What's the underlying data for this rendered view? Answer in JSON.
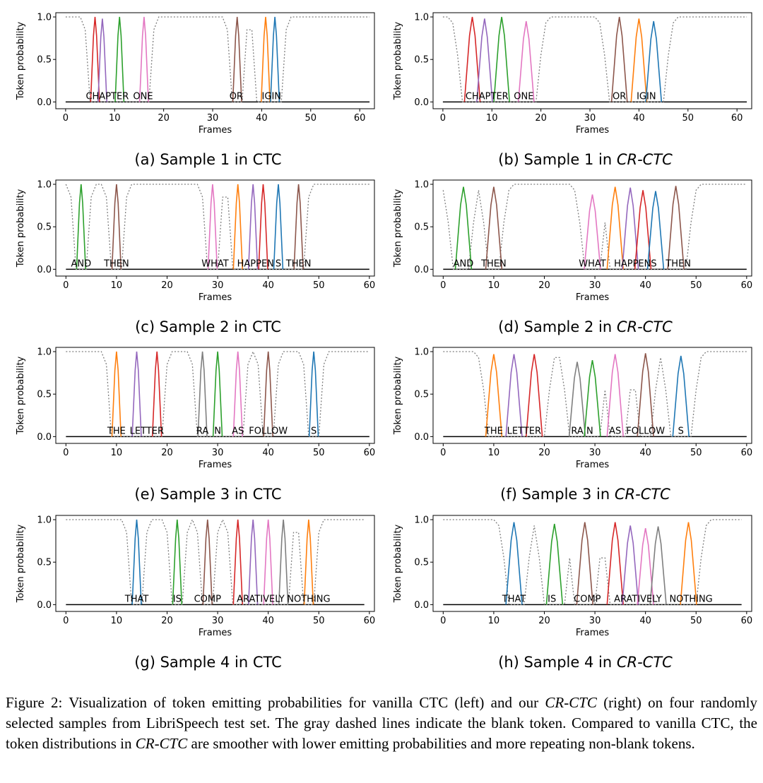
{
  "figure": {
    "caption_label": "Figure 2:",
    "caption_part1": "Visualization of token emitting probabilities for vanilla CTC (left) and our",
    "caption_model": "CR-CTC",
    "caption_part2": "(right) on four randomly selected samples from LibriSpeech test set. The gray dashed lines indicate the blank token. Compared to vanilla CTC, the token distributions in",
    "caption_part3": "are smoother with lower emitting probabilities and more repeating non-blank tokens."
  },
  "colors": {
    "blank": "#7f7f7f",
    "tokens": [
      "#d62728",
      "#9467bd",
      "#2ca02c",
      "#e377c2",
      "#8c564b",
      "#ff7f0e",
      "#1f77b4",
      "#7f7f7f"
    ]
  },
  "chart_data": [
    {
      "id": "a",
      "type": "line",
      "subcaption_prefix": "(a) Sample 1 in",
      "subcaption_model": "CTC",
      "model_italic": false,
      "xlabel": "Frames",
      "ylabel": "Token probability",
      "xlim": [
        -2,
        63
      ],
      "ylim": [
        -0.08,
        1.05
      ],
      "xticks": [
        0,
        10,
        20,
        30,
        40,
        50,
        60
      ],
      "yticks": [
        "0.0",
        "0.5",
        "1.0"
      ],
      "frames": 62,
      "blank": {
        "name": "blank",
        "dips": [
          [
            5,
            17
          ],
          [
            34,
            36
          ],
          [
            39,
            44
          ]
        ],
        "width": 1
      },
      "tokens": [
        {
          "text": "CHA",
          "x": 6,
          "peak": 1.0,
          "color": "#d62728"
        },
        {
          "text": "P",
          "x": 7.5,
          "peak": 0.98,
          "color": "#9467bd"
        },
        {
          "text": "TER",
          "x": 11,
          "peak": 1.0,
          "color": "#2ca02c"
        },
        {
          "text": "ONE",
          "x": 16,
          "peak": 1.0,
          "color": "#e377c2"
        },
        {
          "text": "OR",
          "x": 35,
          "peak": 1.0,
          "color": "#8c564b"
        },
        {
          "text": "IG",
          "x": 40.8,
          "peak": 1.0,
          "color": "#ff7f0e"
        },
        {
          "text": "IN",
          "x": 42.7,
          "peak": 1.0,
          "color": "#1f77b4"
        }
      ],
      "labels": [
        {
          "text": "CHAPTER",
          "x": 8.5
        },
        {
          "text": "ONE",
          "x": 15.8
        },
        {
          "text": "OR",
          "x": 34.8
        },
        {
          "text": "IGIN",
          "x": 42
        }
      ]
    },
    {
      "id": "b",
      "type": "line",
      "subcaption_prefix": "(b) Sample 1 in",
      "subcaption_model": "CR-CTC",
      "model_italic": true,
      "xlabel": "Frames",
      "ylabel": "Token probability",
      "xlim": [
        -2,
        63
      ],
      "ylim": [
        -0.08,
        1.05
      ],
      "xticks": [
        0,
        10,
        20,
        30,
        40,
        50,
        60
      ],
      "yticks": [
        "0.0",
        "0.5",
        "1.0"
      ],
      "frames": 62,
      "blank": {
        "name": "blank",
        "dips": [
          [
            4,
            19
          ],
          [
            34,
            45
          ]
        ],
        "width": 2
      },
      "tokens": [
        {
          "text": "CHA",
          "x": 6,
          "peak": 1.0,
          "color": "#d62728"
        },
        {
          "text": "P",
          "x": 8.5,
          "peak": 0.98,
          "color": "#9467bd"
        },
        {
          "text": "TER",
          "x": 12,
          "peak": 1.0,
          "color": "#2ca02c"
        },
        {
          "text": "ONE",
          "x": 17,
          "peak": 0.95,
          "color": "#e377c2"
        },
        {
          "text": "OR",
          "x": 36,
          "peak": 1.0,
          "color": "#8c564b"
        },
        {
          "text": "IG",
          "x": 40,
          "peak": 0.98,
          "color": "#ff7f0e"
        },
        {
          "text": "IN",
          "x": 43,
          "peak": 0.95,
          "color": "#1f77b4"
        }
      ],
      "labels": [
        {
          "text": "CHAPTER",
          "x": 9
        },
        {
          "text": "ONE",
          "x": 16.5
        },
        {
          "text": "OR",
          "x": 36
        },
        {
          "text": "IGIN",
          "x": 41.5
        }
      ]
    },
    {
      "id": "c",
      "type": "line",
      "subcaption_prefix": "(c) Sample 2 in",
      "subcaption_model": "CTC",
      "model_italic": false,
      "xlabel": "Frames",
      "ylabel": "Token probability",
      "xlim": [
        -2,
        61
      ],
      "ylim": [
        -0.08,
        1.05
      ],
      "xticks": [
        0,
        10,
        20,
        30,
        40,
        50,
        60
      ],
      "yticks": [
        "0.0",
        "0.5",
        "1.0"
      ],
      "frames": 60,
      "blank": {
        "name": "blank",
        "dips": [
          [
            2,
            4
          ],
          [
            9,
            11
          ],
          [
            28,
            30
          ],
          [
            33,
            47
          ]
        ],
        "width": 1
      },
      "tokens": [
        {
          "text": "AND",
          "x": 3,
          "peak": 1.0,
          "color": "#2ca02c"
        },
        {
          "text": "THEN",
          "x": 10,
          "peak": 1.0,
          "color": "#8c564b"
        },
        {
          "text": "WHAT",
          "x": 29,
          "peak": 1.0,
          "color": "#e377c2"
        },
        {
          "text": "HA",
          "x": 34,
          "peak": 1.0,
          "color": "#ff7f0e"
        },
        {
          "text": "PP",
          "x": 37,
          "peak": 1.0,
          "color": "#9467bd"
        },
        {
          "text": "EN",
          "x": 39,
          "peak": 1.0,
          "color": "#d62728"
        },
        {
          "text": "S",
          "x": 42,
          "peak": 1.0,
          "color": "#1f77b4"
        },
        {
          "text": "THEN",
          "x": 46,
          "peak": 1.0,
          "color": "#8c564b"
        }
      ],
      "labels": [
        {
          "text": "AND",
          "x": 3
        },
        {
          "text": "THEN",
          "x": 10
        },
        {
          "text": "WHAT",
          "x": 29.5
        },
        {
          "text": "HAPPEN",
          "x": 37.5
        },
        {
          "text": "S",
          "x": 42
        },
        {
          "text": "THEN",
          "x": 46
        }
      ]
    },
    {
      "id": "d",
      "type": "line",
      "subcaption_prefix": "(d) Sample 2 in",
      "subcaption_model": "CR-CTC",
      "model_italic": true,
      "xlabel": "Frames",
      "ylabel": "Token probability",
      "xlim": [
        -2,
        61
      ],
      "ylim": [
        -0.08,
        1.05
      ],
      "xticks": [
        0,
        10,
        20,
        30,
        40,
        50,
        60
      ],
      "yticks": [
        "0.0",
        "0.5",
        "1.0"
      ],
      "frames": 60,
      "blank": {
        "name": "blank",
        "dips": [
          [
            2,
            5
          ],
          [
            9,
            11
          ],
          [
            28,
            31
          ],
          [
            33,
            48
          ]
        ],
        "width": 2
      },
      "tokens": [
        {
          "text": "AND",
          "x": 4,
          "peak": 0.97,
          "color": "#2ca02c"
        },
        {
          "text": "THEN",
          "x": 10,
          "peak": 0.97,
          "color": "#8c564b"
        },
        {
          "text": "WHAT",
          "x": 29.5,
          "peak": 0.88,
          "color": "#e377c2"
        },
        {
          "text": "HA",
          "x": 34,
          "peak": 0.97,
          "color": "#ff7f0e"
        },
        {
          "text": "PP",
          "x": 37,
          "peak": 0.96,
          "color": "#9467bd"
        },
        {
          "text": "EN",
          "x": 39.5,
          "peak": 0.93,
          "color": "#d62728"
        },
        {
          "text": "S",
          "x": 42,
          "peak": 0.92,
          "color": "#1f77b4"
        },
        {
          "text": "THEN",
          "x": 46,
          "peak": 0.98,
          "color": "#8c564b"
        }
      ],
      "labels": [
        {
          "text": "AND",
          "x": 4
        },
        {
          "text": "THEN",
          "x": 10
        },
        {
          "text": "WHAT",
          "x": 29.5
        },
        {
          "text": "HAPPENS",
          "x": 38
        },
        {
          "text": "THEN",
          "x": 46.5
        }
      ]
    },
    {
      "id": "e",
      "type": "line",
      "subcaption_prefix": "(e) Sample 3 in",
      "subcaption_model": "CTC",
      "model_italic": false,
      "xlabel": "Frames",
      "ylabel": "Token probability",
      "xlim": [
        -2,
        61
      ],
      "ylim": [
        -0.08,
        1.05
      ],
      "xticks": [
        0,
        10,
        20,
        30,
        40,
        50,
        60
      ],
      "yticks": [
        "0.0",
        "0.5",
        "1.0"
      ],
      "frames": 60,
      "blank": {
        "name": "blank",
        "dips": [
          [
            9,
            19
          ],
          [
            26,
            35
          ],
          [
            39,
            41
          ],
          [
            48,
            50
          ]
        ],
        "width": 1
      },
      "tokens": [
        {
          "text": "THE",
          "x": 10,
          "peak": 1.0,
          "color": "#ff7f0e"
        },
        {
          "text": "LET",
          "x": 14,
          "peak": 1.0,
          "color": "#9467bd"
        },
        {
          "text": "TER",
          "x": 18,
          "peak": 1.0,
          "color": "#d62728"
        },
        {
          "text": "RA",
          "x": 27,
          "peak": 1.0,
          "color": "#7f7f7f"
        },
        {
          "text": "N",
          "x": 30,
          "peak": 1.0,
          "color": "#2ca02c"
        },
        {
          "text": "AS",
          "x": 34,
          "peak": 1.0,
          "color": "#e377c2"
        },
        {
          "text": "FOLLOW",
          "x": 40,
          "peak": 1.0,
          "color": "#8c564b"
        },
        {
          "text": "S",
          "x": 49,
          "peak": 1.0,
          "color": "#1f77b4"
        }
      ],
      "labels": [
        {
          "text": "THE",
          "x": 10
        },
        {
          "text": "LETTER",
          "x": 16
        },
        {
          "text": "RA",
          "x": 27
        },
        {
          "text": "N",
          "x": 30
        },
        {
          "text": "AS",
          "x": 34
        },
        {
          "text": "FOLLOW",
          "x": 40
        },
        {
          "text": "S",
          "x": 49
        }
      ]
    },
    {
      "id": "f",
      "type": "line",
      "subcaption_prefix": "(f) Sample 3 in",
      "subcaption_model": "CR-CTC",
      "model_italic": true,
      "xlabel": "Frames",
      "ylabel": "Token probability",
      "xlim": [
        -2,
        61
      ],
      "ylim": [
        -0.08,
        1.05
      ],
      "xticks": [
        0,
        10,
        20,
        30,
        40,
        50,
        60
      ],
      "yticks": [
        "0.0",
        "0.5",
        "1.0"
      ],
      "frames": 60,
      "blank": {
        "name": "blank",
        "dips": [
          [
            9,
            20
          ],
          [
            25,
            31
          ],
          [
            33,
            36
          ],
          [
            39,
            41
          ],
          [
            45,
            49
          ]
        ],
        "width": 2
      },
      "tokens": [
        {
          "text": "THE",
          "x": 10,
          "peak": 0.97,
          "color": "#ff7f0e"
        },
        {
          "text": "LET",
          "x": 14,
          "peak": 0.97,
          "color": "#9467bd"
        },
        {
          "text": "TER",
          "x": 18,
          "peak": 0.97,
          "color": "#d62728"
        },
        {
          "text": "RA",
          "x": 26.5,
          "peak": 0.88,
          "color": "#7f7f7f"
        },
        {
          "text": "N",
          "x": 29.5,
          "peak": 0.9,
          "color": "#2ca02c"
        },
        {
          "text": "AS",
          "x": 34,
          "peak": 0.97,
          "color": "#e377c2"
        },
        {
          "text": "FOLLOW",
          "x": 40,
          "peak": 0.98,
          "color": "#8c564b"
        },
        {
          "text": "S",
          "x": 47,
          "peak": 0.95,
          "color": "#1f77b4"
        }
      ],
      "labels": [
        {
          "text": "THE",
          "x": 10
        },
        {
          "text": "LETTER",
          "x": 16
        },
        {
          "text": "RA",
          "x": 26.5
        },
        {
          "text": "N",
          "x": 29
        },
        {
          "text": "AS",
          "x": 34
        },
        {
          "text": "FOLLOW",
          "x": 40
        },
        {
          "text": "S",
          "x": 47
        }
      ]
    },
    {
      "id": "g",
      "type": "line",
      "subcaption_prefix": "(g) Sample 4 in",
      "subcaption_model": "CTC",
      "model_italic": false,
      "xlabel": "Frames",
      "ylabel": "Token probability",
      "xlim": [
        -2,
        61
      ],
      "ylim": [
        -0.08,
        1.05
      ],
      "xticks": [
        0,
        10,
        20,
        30,
        40,
        50,
        60
      ],
      "yticks": [
        "0.0",
        "0.5",
        "1.0"
      ],
      "frames": 59,
      "blank": {
        "name": "blank",
        "dips": [
          [
            13,
            15
          ],
          [
            21,
            23
          ],
          [
            27,
            29
          ],
          [
            33,
            44
          ],
          [
            47,
            49
          ]
        ],
        "width": 1
      },
      "tokens": [
        {
          "text": "THAT",
          "x": 14,
          "peak": 1.0,
          "color": "#1f77b4"
        },
        {
          "text": "IS",
          "x": 22,
          "peak": 1.0,
          "color": "#2ca02c"
        },
        {
          "text": "COMP",
          "x": 28,
          "peak": 1.0,
          "color": "#8c564b"
        },
        {
          "text": "AR",
          "x": 34,
          "peak": 1.0,
          "color": "#d62728"
        },
        {
          "text": "AT",
          "x": 37,
          "peak": 1.0,
          "color": "#9467bd"
        },
        {
          "text": "IVE",
          "x": 40,
          "peak": 1.0,
          "color": "#e377c2"
        },
        {
          "text": "LY",
          "x": 43,
          "peak": 1.0,
          "color": "#7f7f7f"
        },
        {
          "text": "NOTHING",
          "x": 48,
          "peak": 1.0,
          "color": "#ff7f0e"
        }
      ],
      "labels": [
        {
          "text": "THAT",
          "x": 14
        },
        {
          "text": "IS",
          "x": 22
        },
        {
          "text": "COMP",
          "x": 28
        },
        {
          "text": "ARATIVELY",
          "x": 38.5
        },
        {
          "text": "NOTHING",
          "x": 48
        }
      ]
    },
    {
      "id": "h",
      "type": "line",
      "subcaption_prefix": "(h) Sample 4 in",
      "subcaption_model": "CR-CTC",
      "model_italic": true,
      "xlabel": "Frames",
      "ylabel": "Token probability",
      "xlim": [
        -2,
        61
      ],
      "ylim": [
        -0.08,
        1.05
      ],
      "xticks": [
        0,
        10,
        20,
        30,
        40,
        50,
        60
      ],
      "yticks": [
        "0.0",
        "0.5",
        "1.0"
      ],
      "frames": 59,
      "blank": {
        "name": "blank",
        "dips": [
          [
            13,
            16
          ],
          [
            20,
            24
          ],
          [
            26,
            30
          ],
          [
            33,
            46
          ],
          [
            47,
            50
          ]
        ],
        "width": 2
      },
      "tokens": [
        {
          "text": "THAT",
          "x": 14,
          "peak": 0.97,
          "color": "#1f77b4"
        },
        {
          "text": "IS",
          "x": 22,
          "peak": 0.95,
          "color": "#2ca02c"
        },
        {
          "text": "COMP",
          "x": 28,
          "peak": 0.97,
          "color": "#8c564b"
        },
        {
          "text": "AR",
          "x": 34,
          "peak": 0.97,
          "color": "#d62728"
        },
        {
          "text": "AT",
          "x": 37,
          "peak": 0.93,
          "color": "#9467bd"
        },
        {
          "text": "IVE",
          "x": 40,
          "peak": 0.9,
          "color": "#e377c2"
        },
        {
          "text": "LY",
          "x": 42.5,
          "peak": 0.92,
          "color": "#7f7f7f"
        },
        {
          "text": "NOTHING",
          "x": 48.5,
          "peak": 0.97,
          "color": "#ff7f0e"
        }
      ],
      "labels": [
        {
          "text": "THAT",
          "x": 14
        },
        {
          "text": "IS",
          "x": 21.5
        },
        {
          "text": "COMP",
          "x": 28.5
        },
        {
          "text": "ARATIVELY",
          "x": 38.5
        },
        {
          "text": "NOTHING",
          "x": 49
        }
      ]
    }
  ]
}
